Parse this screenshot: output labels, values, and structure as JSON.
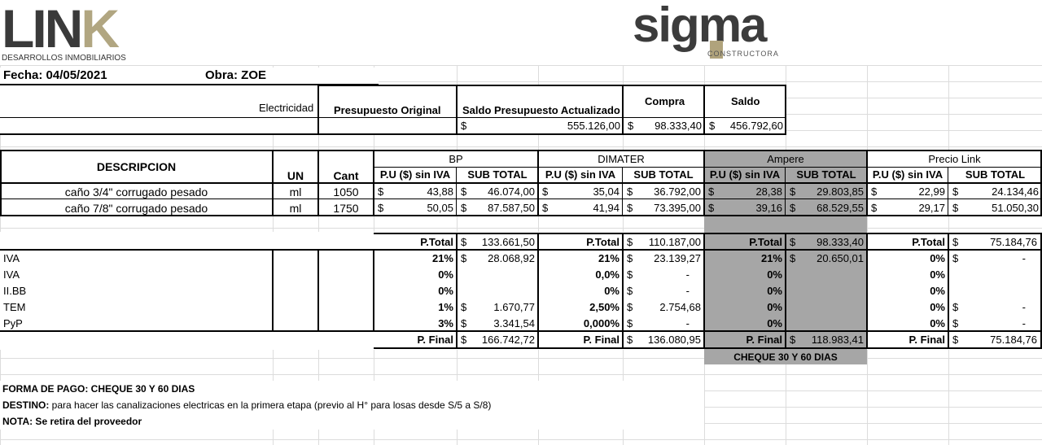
{
  "logo_link": {
    "word_main": "LIN",
    "word_accent": "K",
    "subtitle": "DESARROLLOS INMOBILIARIOS"
  },
  "logo_sigma": {
    "word": "sigma",
    "subtitle": "CONSTRUCTORA"
  },
  "header": {
    "fecha": "Fecha: 04/05/2021",
    "obra": "Obra:  ZOE"
  },
  "summary": {
    "row_label": "Electricidad",
    "col_presupuesto": "Presupuesto Original",
    "col_saldo_act": "Saldo Presupuesto Actualizado",
    "col_compra": "Compra",
    "col_saldo": "Saldo",
    "currency": "$",
    "saldo_act_value": "555.126,00",
    "compra_value": "98.333,40",
    "saldo_value": "456.792,60"
  },
  "table": {
    "desc_header": "DESCRIPCION",
    "un_header": "UN",
    "cant_header": "Cant",
    "pu_header": "P.U ($) sin IVA",
    "sub_header": "SUB TOTAL",
    "suppliers": [
      "BP",
      "DIMATER",
      "Ampere",
      "Precio Link"
    ],
    "items": [
      {
        "desc": "caño 3/4\" corrugado pesado",
        "un": "ml",
        "cant": "1050",
        "vals": [
          [
            "43,88",
            "46.074,00"
          ],
          [
            "35,04",
            "36.792,00"
          ],
          [
            "28,38",
            "29.803,85"
          ],
          [
            "22,99",
            "24.134,46"
          ]
        ]
      },
      {
        "desc": "caño 7/8\" corrugado pesado",
        "un": "ml",
        "cant": "1750",
        "vals": [
          [
            "50,05",
            "87.587,50"
          ],
          [
            "41,94",
            "73.395,00"
          ],
          [
            "39,16",
            "68.529,55"
          ],
          [
            "29,17",
            "51.050,30"
          ]
        ]
      }
    ],
    "ptotal_label": "P.Total",
    "ptotals": [
      "133.661,50",
      "110.187,00",
      "98.333,40",
      "75.184,76"
    ],
    "tax_rows": [
      {
        "label": "IVA",
        "pct": [
          "21%",
          "21%",
          "21%",
          "0%"
        ],
        "amt": [
          "28.068,92",
          "23.139,27",
          "20.650,01",
          "-"
        ],
        "cur": [
          true,
          true,
          true,
          true
        ]
      },
      {
        "label": "IVA",
        "pct": [
          "0%",
          "0,0%",
          "0%",
          "0%"
        ],
        "amt": [
          "",
          "-",
          "",
          ""
        ],
        "cur": [
          false,
          true,
          false,
          false
        ]
      },
      {
        "label": "II.BB",
        "pct": [
          "0%",
          "0%",
          "0%",
          "0%"
        ],
        "amt": [
          "",
          "-",
          "",
          ""
        ],
        "cur": [
          false,
          true,
          false,
          false
        ]
      },
      {
        "label": "TEM",
        "pct": [
          "1%",
          "2,50%",
          "0%",
          "0%"
        ],
        "amt": [
          "1.670,77",
          "2.754,68",
          "",
          "-"
        ],
        "cur": [
          true,
          true,
          false,
          true
        ]
      },
      {
        "label": "PyP",
        "pct": [
          "3%",
          "0,000%",
          "0%",
          "0%"
        ],
        "amt": [
          "3.341,54",
          "-",
          "",
          "-"
        ],
        "cur": [
          true,
          true,
          false,
          true
        ]
      }
    ],
    "pfinal_label": "P. Final",
    "pfinals": [
      "166.742,72",
      "136.080,95",
      "118.983,41",
      "75.184,76"
    ],
    "cheque_note": "CHEQUE 30 Y 60 DIAS"
  },
  "footer": {
    "forma_pago": "FORMA DE PAGO: CHEQUE 30 Y 60 DIAS",
    "destino_label": "DESTINO:",
    "destino_text": " para hacer las canalizaciones electricas en la primera etapa (previo al H° para losas desde S/5  a S/8)",
    "nota": "NOTA:  Se retira del proveedor"
  },
  "colors": {
    "link_dark": "#3a3a3a",
    "link_accent": "#b1a681",
    "sigma_dark": "#3c3c3c",
    "sigma_accent": "#b0a37c",
    "shade": "#a6a6a6"
  }
}
